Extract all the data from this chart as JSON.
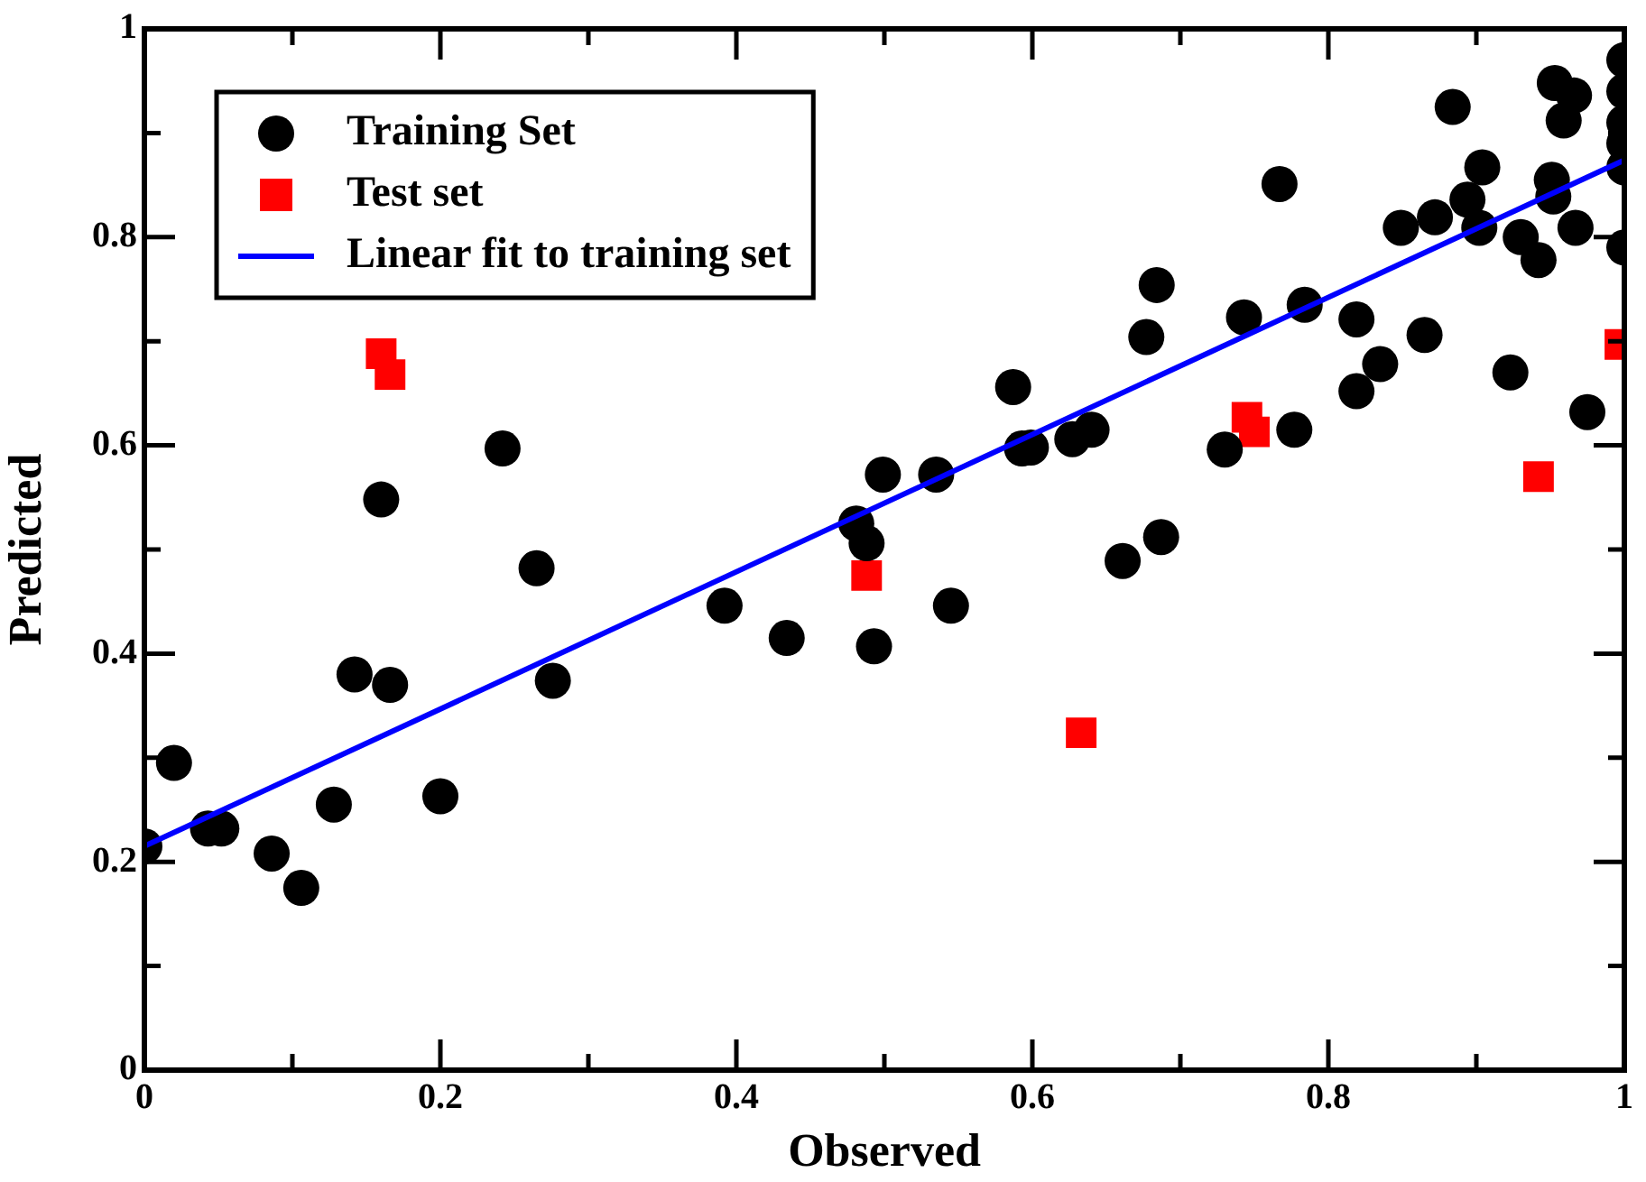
{
  "chart_data": {
    "type": "scatter",
    "xlabel": "Observed",
    "ylabel": "Predicted",
    "xlim": [
      0,
      1
    ],
    "ylim": [
      0,
      1
    ],
    "xticks": [
      0,
      {
        "value": 0.1,
        "label": null
      },
      0.2,
      {
        "value": 0.3,
        "label": null
      },
      0.4,
      {
        "value": 0.5,
        "label": null
      },
      0.6,
      {
        "value": 0.7,
        "label": null
      },
      0.8,
      {
        "value": 0.9,
        "label": null
      },
      1
    ],
    "yticks": [
      0,
      {
        "value": 0.1,
        "label": null
      },
      0.2,
      {
        "value": 0.3,
        "label": null
      },
      0.4,
      {
        "value": 0.5,
        "label": null
      },
      0.6,
      {
        "value": 0.7,
        "label": null
      },
      0.8,
      {
        "value": 0.9,
        "label": null
      },
      1
    ],
    "grid": false,
    "legend": "top left",
    "series": [
      {
        "name": "Training Set",
        "type": "scatter",
        "marker": "circle",
        "color": "#000000",
        "x": [
          0,
          0.02,
          0.043,
          0.052,
          0.086,
          0.106,
          0.128,
          0.142,
          0.166,
          0.16,
          0.2,
          0.242,
          0.265,
          0.276,
          0.392,
          0.434,
          0.481,
          0.488,
          0.493,
          0.499,
          0.535,
          0.545,
          0.587,
          0.593,
          0.599,
          0.627,
          0.64,
          0.661,
          0.687,
          0.677,
          0.684,
          0.73,
          0.743,
          0.767,
          0.777,
          0.784,
          0.819,
          0.819,
          0.835,
          0.849,
          0.865,
          0.872,
          0.884,
          0.894,
          0.904,
          0.902,
          0.923,
          0.93,
          0.942,
          0.952,
          0.951,
          0.953,
          0.966,
          0.959,
          0.967,
          0.975,
          1,
          1,
          1,
          1,
          1,
          1
        ],
        "values": [
          0.215,
          0.295,
          0.232,
          0.232,
          0.208,
          0.175,
          0.255,
          0.38,
          0.37,
          0.548,
          0.263,
          0.597,
          0.482,
          0.374,
          0.446,
          0.415,
          0.525,
          0.506,
          0.407,
          0.572,
          0.572,
          0.446,
          0.656,
          0.597,
          0.598,
          0.606,
          0.615,
          0.489,
          0.512,
          0.704,
          0.754,
          0.596,
          0.723,
          0.851,
          0.615,
          0.735,
          0.721,
          0.652,
          0.678,
          0.809,
          0.706,
          0.819,
          0.925,
          0.836,
          0.867,
          0.809,
          0.67,
          0.8,
          0.778,
          0.839,
          0.855,
          0.948,
          0.936,
          0.912,
          0.809,
          0.632,
          0.97,
          0.94,
          0.91,
          0.89,
          0.867,
          0.79
        ]
      },
      {
        "name": "Test set",
        "type": "scatter",
        "marker": "square",
        "color": "#ff0000",
        "x": [
          0.16,
          0.166,
          0.488,
          0.633,
          0.745,
          0.75,
          0.942,
          0.997
        ],
        "values": [
          0.688,
          0.668,
          0.475,
          0.324,
          0.627,
          0.613,
          0.57,
          0.697
        ]
      },
      {
        "name": "Linear fit to training set",
        "type": "line",
        "marker": "none",
        "line_style": "solid",
        "color": "#0000ff",
        "x": [
          0,
          1
        ],
        "values": [
          0.215,
          0.874
        ]
      }
    ]
  }
}
